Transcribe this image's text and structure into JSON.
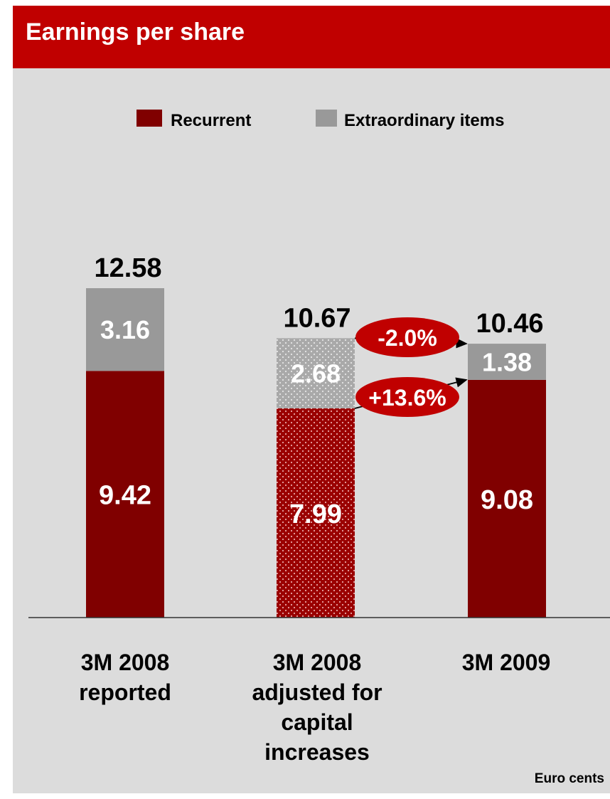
{
  "title": "Earnings per share",
  "unit_note": "Euro cents",
  "colors": {
    "title_bar": "#c00000",
    "panel": "#dcdcdc",
    "recurrent": "#800000",
    "extraordinary": "#999999",
    "oval": "#c00000"
  },
  "chart_data": {
    "type": "bar",
    "stacked": true,
    "title": "Earnings per share",
    "categories": [
      "3M 2008 reported",
      "3M 2008 adjusted for capital increases",
      "3M 2009"
    ],
    "category_lines": [
      [
        "3M 2008",
        "reported"
      ],
      [
        "3M 2008",
        "adjusted for",
        "capital",
        "increases"
      ],
      [
        "3M 2009"
      ]
    ],
    "series": [
      {
        "name": "Recurrent",
        "values": [
          9.42,
          7.99,
          9.08
        ],
        "labels": [
          "9.42",
          "7.99",
          "9.08"
        ]
      },
      {
        "name": "Extraordinary items",
        "values": [
          3.16,
          2.68,
          1.38
        ],
        "labels": [
          "3.16",
          "2.68",
          "1.38"
        ]
      }
    ],
    "totals": [
      12.58,
      10.67,
      10.46
    ],
    "total_labels": [
      "12.58",
      "10.67",
      "10.46"
    ],
    "patterned_category_index": 1,
    "ylim": [
      0,
      14
    ],
    "grid": false,
    "legend_position": "top-right",
    "annotations": [
      {
        "text": "-2.0%",
        "from": "3M 2008 adjusted total",
        "to": "3M 2009 total"
      },
      {
        "text": "+13.6%",
        "from": "3M 2008 adjusted recurrent",
        "to": "3M 2009 recurrent"
      }
    ]
  }
}
